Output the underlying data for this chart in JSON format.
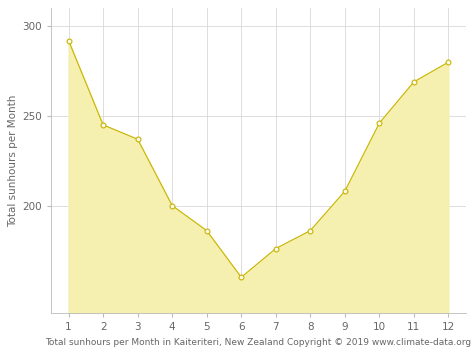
{
  "months": [
    1,
    2,
    3,
    4,
    5,
    6,
    7,
    8,
    9,
    10,
    11,
    12
  ],
  "sunhours": [
    292,
    245,
    237,
    200,
    186,
    160,
    176,
    186,
    208,
    246,
    269,
    280
  ],
  "fill_color": "#f5f0b0",
  "line_color": "#c8b400",
  "marker_color": "#c8b400",
  "marker_face": "#fafaf0",
  "ylabel": "Total sunhours per Month",
  "xlabel": "Total sunhours per Month in Kaiteriteri, New Zealand Copyright © 2019 www.climate-data.org",
  "ylim_min": 140,
  "ylim_max": 310,
  "xlim_min": 0.5,
  "xlim_max": 12.5,
  "yticks": [
    200,
    250,
    300
  ],
  "xticks": [
    1,
    2,
    3,
    4,
    5,
    6,
    7,
    8,
    9,
    10,
    11,
    12
  ],
  "grid_color": "#d8d8d8",
  "background_color": "#ffffff",
  "axis_fontsize": 7.5,
  "tick_fontsize": 7.5,
  "xlabel_fontsize": 6.5
}
